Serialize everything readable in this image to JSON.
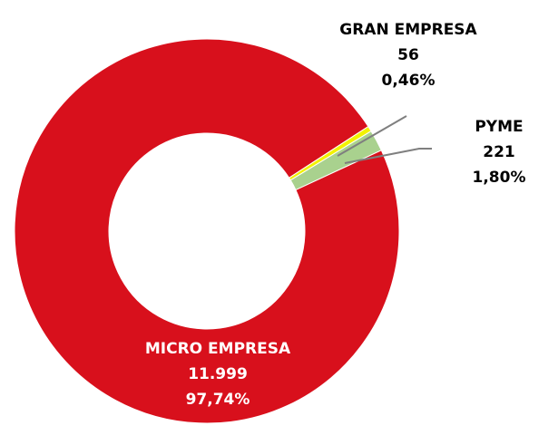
{
  "chart_data": {
    "type": "donut",
    "categories": [
      "GRAN EMPRESA",
      "PYME",
      "MICRO EMPRESA"
    ],
    "values": [
      56,
      221,
      11999
    ],
    "value_labels": [
      "56",
      "221",
      "11.999"
    ],
    "percentages": [
      0.46,
      1.8,
      97.74
    ],
    "percentage_labels": [
      "0,46%",
      "1,80%",
      "97,74%"
    ],
    "colors": [
      "#f2f200",
      "#a9d18e",
      "#d8101c"
    ]
  }
}
